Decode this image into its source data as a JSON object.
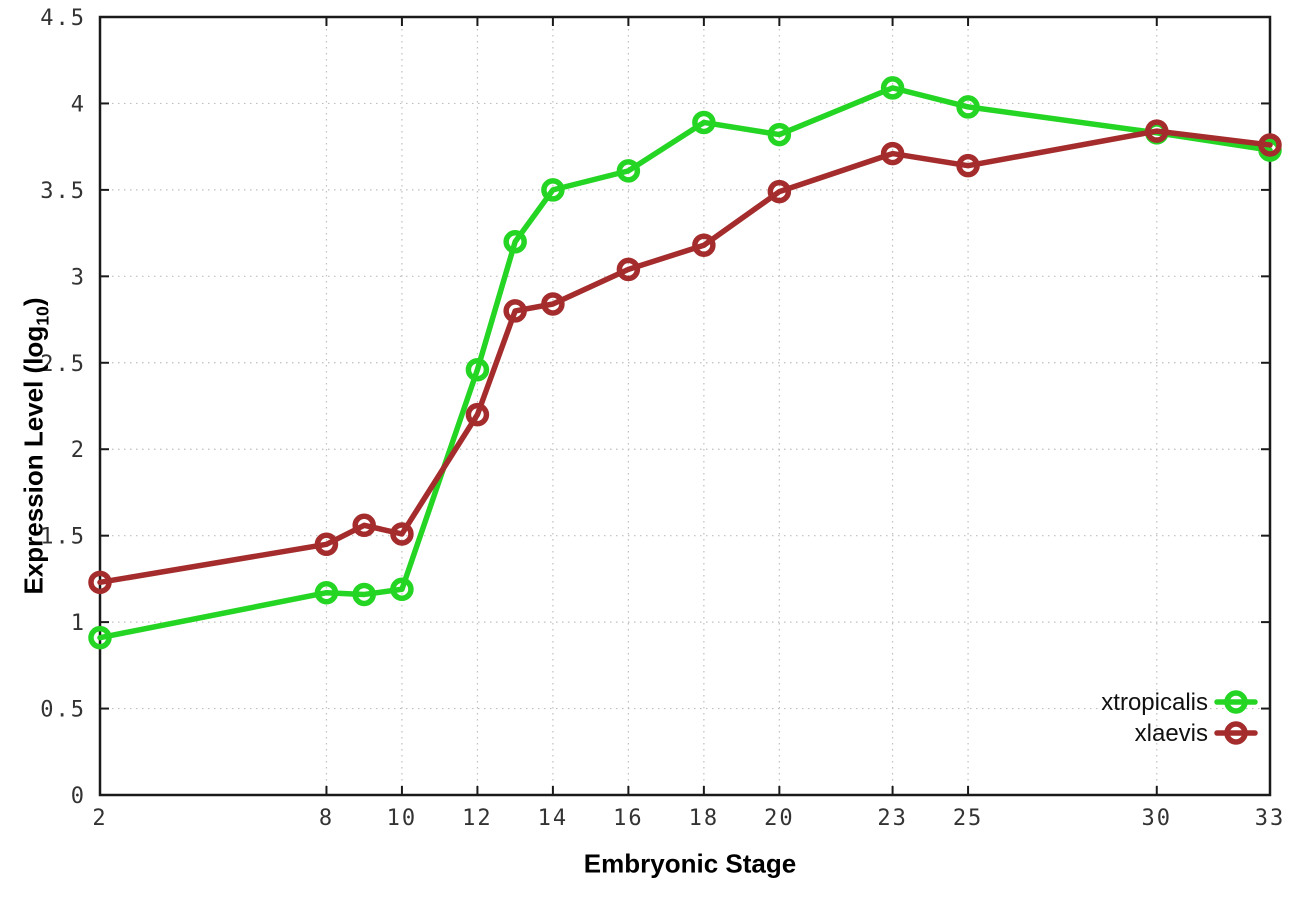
{
  "chart_data": {
    "type": "line",
    "title": "",
    "xlabel": "Embryonic Stage",
    "ylabel": "Expression Level (log10)",
    "ylabel_parts": {
      "pre": "Expression Level (log",
      "sub": "10",
      "post": ")"
    },
    "xlim": [
      2,
      33
    ],
    "ylim": [
      0,
      4.5
    ],
    "x_ticks": [
      2,
      8,
      10,
      12,
      14,
      16,
      18,
      20,
      23,
      25,
      30,
      33
    ],
    "x_tick_labels": [
      "2",
      "8",
      "10",
      "12",
      "14",
      "16",
      "18",
      "20",
      "23",
      "25",
      "30",
      "33"
    ],
    "y_ticks": [
      0,
      0.5,
      1,
      1.5,
      2,
      2.5,
      3,
      3.5,
      4,
      4.5
    ],
    "y_tick_labels": [
      "0",
      "0.5",
      "1",
      "1.5",
      "2",
      "2.5",
      "3",
      "3.5",
      "4",
      "4.5"
    ],
    "grid": true,
    "grid_style": "dotted",
    "legend_position": "bottom-right",
    "categories_note": "x values are embryonic stage numbers on a linear axis",
    "series": [
      {
        "name": "xtropicalis",
        "color": "#24d524",
        "marker": "open-circle",
        "x": [
          2,
          8,
          9,
          10,
          12,
          13,
          14,
          16,
          18,
          20,
          23,
          25,
          30,
          33
        ],
        "y": [
          0.91,
          1.17,
          1.16,
          1.19,
          2.46,
          3.2,
          3.5,
          3.61,
          3.89,
          3.82,
          4.09,
          3.98,
          3.83,
          3.73
        ]
      },
      {
        "name": "xlaevis",
        "color": "#a52c2c",
        "marker": "open-circle",
        "x": [
          2,
          8,
          9,
          10,
          12,
          13,
          14,
          16,
          18,
          20,
          23,
          25,
          30,
          33
        ],
        "y": [
          1.23,
          1.45,
          1.56,
          1.51,
          2.2,
          2.8,
          2.84,
          3.04,
          3.18,
          3.49,
          3.71,
          3.64,
          3.84,
          3.76
        ]
      }
    ],
    "colors": {
      "border": "#1a1a1a",
      "grid": "#bfbfbf",
      "tick_text": "#333333",
      "background": "#ffffff"
    }
  }
}
